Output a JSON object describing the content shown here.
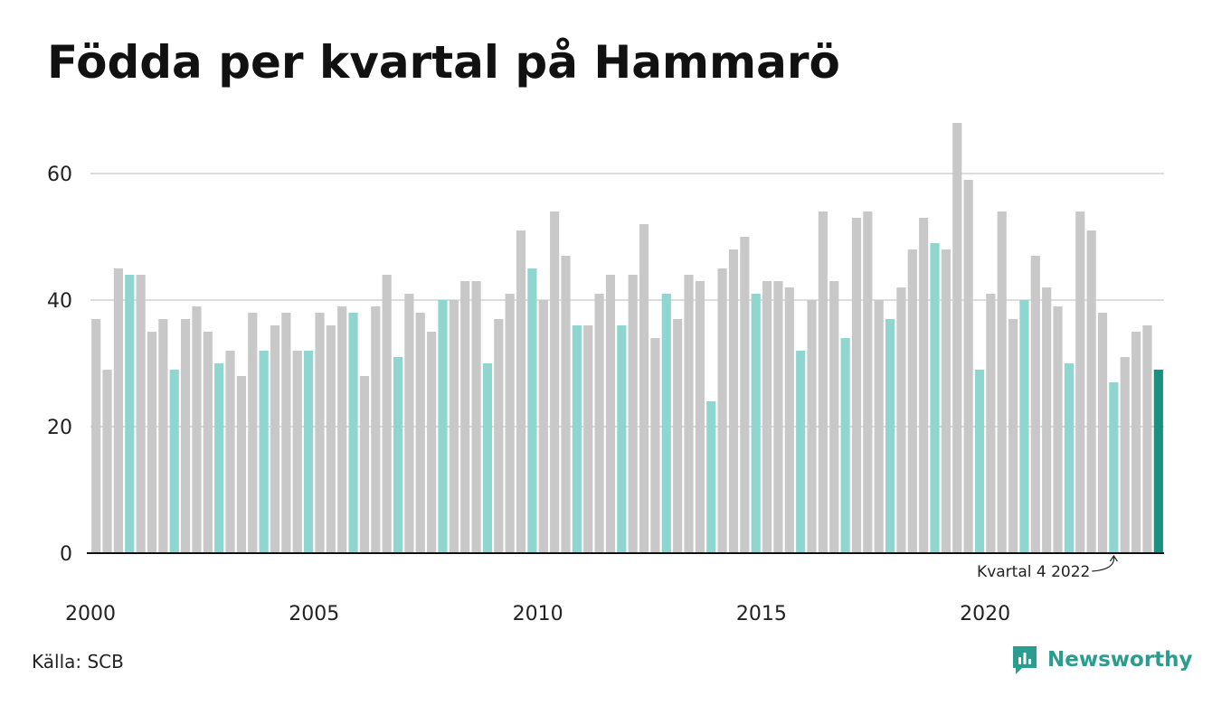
{
  "title": "Födda per kvartal på Hammarö",
  "source": "Källa: SCB",
  "brand": "Newsworthy",
  "colors": {
    "bar_default": "#c8c8c8",
    "bar_q4": "#8ed6cf",
    "bar_latest": "#1a9080",
    "grid": "#dddddd",
    "axis": "#111111",
    "brand": "#2a9d8f"
  },
  "chart_data": {
    "type": "bar",
    "title": "Födda per kvartal på Hammarö",
    "ylim": [
      0,
      70
    ],
    "yticks": [
      0,
      20,
      40,
      60
    ],
    "xtick_labels": [
      "2000",
      "2005",
      "2010",
      "2015",
      "2020"
    ],
    "grid": true,
    "highlight": "q4 bars in teal; latest bar dark teal",
    "annotation": "Kvartal 4 2022",
    "values": [
      37,
      29,
      45,
      44,
      44,
      35,
      37,
      29,
      37,
      39,
      35,
      30,
      32,
      28,
      38,
      32,
      36,
      38,
      32,
      32,
      38,
      36,
      39,
      38,
      28,
      39,
      44,
      31,
      41,
      38,
      35,
      40,
      40,
      43,
      43,
      30,
      37,
      41,
      51,
      45,
      40,
      54,
      47,
      36,
      36,
      41,
      44,
      36,
      44,
      52,
      34,
      41,
      37,
      44,
      43,
      24,
      45,
      48,
      50,
      41,
      43,
      43,
      42,
      32,
      40,
      54,
      43,
      34,
      53,
      54,
      40,
      37,
      42,
      48,
      53,
      49,
      48,
      68,
      59,
      29,
      41,
      54,
      37,
      40,
      47,
      42,
      39,
      30,
      54,
      51,
      38,
      27,
      31,
      35,
      36,
      29
    ]
  }
}
